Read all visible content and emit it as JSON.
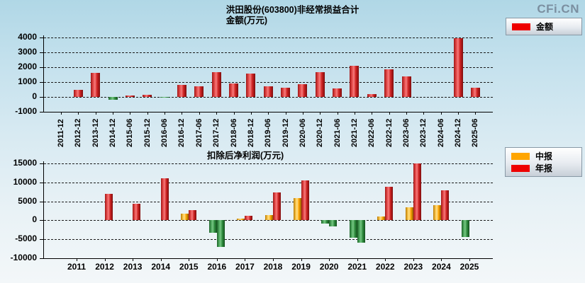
{
  "page": {
    "watermark": "CFi.CN"
  },
  "chart_data": [
    {
      "type": "bar",
      "title": "洪田股份(603800)非经常损益合计",
      "subtitle": "金额(万元)",
      "legend_position": "top-right",
      "grid": "dashed-horizontal",
      "ylim": [
        -1000,
        4000
      ],
      "ytick_step": 1000,
      "categories": [
        "2011-12",
        "2012-12",
        "2013-12",
        "2014-12",
        "2015-06",
        "2015-12",
        "2016-06",
        "2016-12",
        "2017-06",
        "2017-12",
        "2018-06",
        "2018-12",
        "2019-06",
        "2019-12",
        "2020-06",
        "2020-12",
        "2021-06",
        "2021-12",
        "2022-06",
        "2022-12",
        "2023-06",
        "2023-12",
        "2024-06",
        "2024-12",
        "2025-06"
      ],
      "series": [
        {
          "name": "金额",
          "color": "#ee0000",
          "negative_color": "#2e8b3d",
          "values": [
            null,
            480,
            1630,
            -210,
            110,
            160,
            -60,
            820,
            710,
            1680,
            920,
            1580,
            730,
            600,
            840,
            1670,
            570,
            2100,
            200,
            1860,
            1400,
            null,
            null,
            3950,
            610
          ]
        }
      ]
    },
    {
      "type": "bar",
      "title": "扣除后净利润(万元)",
      "legend_position": "top-right",
      "grid": "dashed-horizontal",
      "ylim": [
        -10000,
        15000
      ],
      "ytick_step": 5000,
      "categories": [
        "2011",
        "2012",
        "2013",
        "2014",
        "2015",
        "2016",
        "2017",
        "2018",
        "2019",
        "2020",
        "2021",
        "2022",
        "2023",
        "2024",
        "2025"
      ],
      "series": [
        {
          "name": "中报",
          "color": "#ffa500",
          "negative_color": "#2e8b3d",
          "values": [
            null,
            null,
            null,
            null,
            1800,
            -3300,
            420,
            1300,
            5900,
            -950,
            -4550,
            1050,
            3400,
            4050,
            -4400
          ]
        },
        {
          "name": "年报",
          "color": "#ee0000",
          "negative_color": "#2e8b3d",
          "values": [
            null,
            6900,
            4400,
            11000,
            2700,
            -7000,
            1250,
            7300,
            10500,
            -1550,
            -5950,
            8900,
            15000,
            7900,
            null
          ]
        }
      ]
    }
  ]
}
